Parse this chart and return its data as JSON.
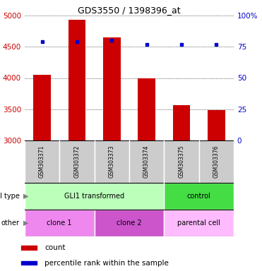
{
  "title": "GDS3550 / 1398396_at",
  "samples": [
    "GSM303371",
    "GSM303372",
    "GSM303373",
    "GSM303374",
    "GSM303375",
    "GSM303376"
  ],
  "counts": [
    4050,
    4930,
    4650,
    3990,
    3570,
    3490
  ],
  "percentile_ranks": [
    79,
    79,
    80,
    77,
    77,
    77
  ],
  "ylim_left": [
    3000,
    5000
  ],
  "ylim_right": [
    0,
    100
  ],
  "left_ticks": [
    3000,
    3500,
    4000,
    4500,
    5000
  ],
  "right_ticks": [
    0,
    25,
    50,
    75,
    100
  ],
  "left_tick_labels": [
    "3000",
    "3500",
    "4000",
    "4500",
    "5000"
  ],
  "right_tick_labels": [
    "0",
    "25",
    "50",
    "75",
    "100%"
  ],
  "bar_color": "#cc0000",
  "dot_color": "#0000cc",
  "cell_type_groups": [
    {
      "label": "GLI1 transformed",
      "start": 0,
      "end": 4,
      "color": "#bbffbb"
    },
    {
      "label": "control",
      "start": 4,
      "end": 6,
      "color": "#44dd44"
    }
  ],
  "other_groups": [
    {
      "label": "clone 1",
      "start": 0,
      "end": 2,
      "color": "#ee88ee"
    },
    {
      "label": "clone 2",
      "start": 2,
      "end": 4,
      "color": "#cc55cc"
    },
    {
      "label": "parental cell",
      "start": 4,
      "end": 6,
      "color": "#ffbbff"
    }
  ],
  "cell_type_label": "cell type",
  "other_label": "other",
  "legend_count_label": "count",
  "legend_percentile_label": "percentile rank within the sample",
  "tick_label_color_left": "#cc0000",
  "tick_label_color_right": "#0000cc",
  "sample_bg_color": "#cccccc",
  "bar_width": 0.5,
  "chart_bg_color": "#ffffff",
  "separator_color": "#ffffff"
}
